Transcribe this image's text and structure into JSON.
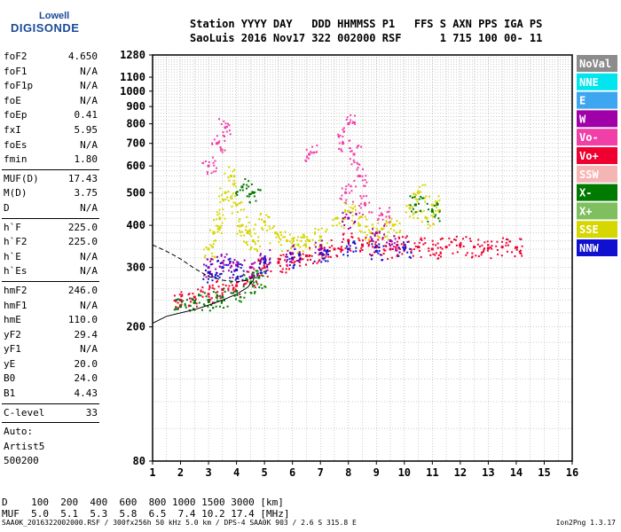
{
  "logo": {
    "line1": "Lowell",
    "line2": "DIGISONDE"
  },
  "header": {
    "line1": "Station YYYY DAY   DDD HHMMSS P1   FFS S AXN PPS IGA PS",
    "line2": "SaoLuis 2016 Nov17 322 002000 RSF      1 715 100 00- 11"
  },
  "params_group1": [
    {
      "name": "foF2",
      "value": "4.650"
    },
    {
      "name": "foF1",
      "value": "N/A"
    },
    {
      "name": "foF1p",
      "value": "N/A"
    },
    {
      "name": "foE",
      "value": "N/A"
    },
    {
      "name": "foEp",
      "value": "0.41"
    },
    {
      "name": "fxI",
      "value": "5.95"
    },
    {
      "name": "foEs",
      "value": "N/A"
    },
    {
      "name": "fmin",
      "value": "1.80"
    }
  ],
  "params_group2": [
    {
      "name": "MUF(D)",
      "value": "17.43"
    },
    {
      "name": "M(D)",
      "value": "3.75"
    },
    {
      "name": "D",
      "value": "N/A"
    }
  ],
  "params_group3": [
    {
      "name": "h`F",
      "value": "225.0"
    },
    {
      "name": "h`F2",
      "value": "225.0"
    },
    {
      "name": "h`E",
      "value": "N/A"
    },
    {
      "name": "h`Es",
      "value": "N/A"
    }
  ],
  "params_group4": [
    {
      "name": "hmF2",
      "value": "246.0"
    },
    {
      "name": "hmF1",
      "value": "N/A"
    },
    {
      "name": "hmE",
      "value": "110.0"
    },
    {
      "name": "yF2",
      "value": "29.4"
    },
    {
      "name": "yF1",
      "value": "N/A"
    },
    {
      "name": "yE",
      "value": "20.0"
    },
    {
      "name": "B0",
      "value": "24.0"
    },
    {
      "name": "B1",
      "value": "4.43"
    }
  ],
  "clevel": {
    "name": "C-level",
    "value": "33"
  },
  "auto": {
    "line1": "Auto:",
    "line2": "Artist5",
    "line3": "500200"
  },
  "bottom": {
    "d_line": "D    100  200  400  600  800 1000 1500 3000 [km]",
    "muf_line": "MUF  5.0  5.1  5.3  5.8  6.5  7.4 10.2 17.4 [MHz]"
  },
  "footer": {
    "left": "SAA0K_2016322002000.RSF / 300fx256h 50 kHz 5.0 km / DPS-4 SAA0K 903 / 2.6 S 315.8 E",
    "right": "Ion2Png 1.3.17"
  },
  "legend": [
    {
      "label": "NoVal",
      "color": "#8c8c8c"
    },
    {
      "label": "NNE",
      "color": "#00e5ee"
    },
    {
      "label": "E",
      "color": "#3ea6f0"
    },
    {
      "label": "W",
      "color": "#a000a8"
    },
    {
      "label": "Vo-",
      "color": "#f040a8"
    },
    {
      "label": "Vo+",
      "color": "#f00030"
    },
    {
      "label": "SSW",
      "color": "#f5b5b5"
    },
    {
      "label": "X-",
      "color": "#007a00"
    },
    {
      "label": "X+",
      "color": "#7fbf5f"
    },
    {
      "label": "SSE",
      "color": "#d6d600"
    },
    {
      "label": "NNW",
      "color": "#1010d0"
    }
  ],
  "chart_data": {
    "type": "scatter",
    "xlim": [
      1,
      16
    ],
    "ylim": [
      80,
      1280
    ],
    "y_scale": "log",
    "x_ticks": [
      "1",
      "2",
      "3",
      "4",
      "5",
      "6",
      "7",
      "8",
      "9",
      "10",
      "11",
      "12",
      "13",
      "14",
      "15",
      "16"
    ],
    "y_ticks": [
      "80",
      "200",
      "300",
      "400",
      "500",
      "600",
      "700",
      "800",
      "900",
      "1000",
      "1100",
      "1280"
    ],
    "grid": true,
    "curve": [
      [
        1.0,
        205
      ],
      [
        1.5,
        215
      ],
      [
        2.0,
        220
      ],
      [
        2.5,
        225
      ],
      [
        3.0,
        232
      ],
      [
        3.5,
        240
      ],
      [
        4.0,
        250
      ],
      [
        4.4,
        262
      ],
      [
        4.6,
        275
      ],
      [
        4.65,
        285
      ]
    ],
    "curve_dashed": [
      [
        1.0,
        350
      ],
      [
        1.5,
        335
      ],
      [
        2.0,
        318
      ],
      [
        2.5,
        298
      ],
      [
        3.0,
        282
      ],
      [
        3.5,
        275
      ],
      [
        4.0,
        272
      ],
      [
        4.4,
        275
      ],
      [
        4.6,
        280
      ]
    ],
    "series": [
      {
        "name": "SSE",
        "color_key": 9,
        "points": [
          [
            3.0,
            340
          ],
          [
            3.2,
            380
          ],
          [
            3.4,
            420
          ],
          [
            3.6,
            500
          ],
          [
            3.8,
            560
          ],
          [
            4.0,
            460
          ],
          [
            4.2,
            400
          ],
          [
            4.4,
            380
          ],
          [
            4.6,
            360
          ],
          [
            5.0,
            410
          ],
          [
            5.4,
            380
          ],
          [
            5.8,
            360
          ],
          [
            6.2,
            350
          ],
          [
            6.6,
            360
          ],
          [
            7.0,
            370
          ],
          [
            7.6,
            420
          ],
          [
            8.0,
            440
          ],
          [
            8.4,
            400
          ],
          [
            8.8,
            380
          ],
          [
            9.2,
            390
          ],
          [
            9.6,
            400
          ],
          [
            10.2,
            450
          ],
          [
            10.5,
            500
          ],
          [
            10.8,
            420
          ],
          [
            11.0,
            460
          ]
        ]
      },
      {
        "name": "Vo+",
        "color_key": 5,
        "points": [
          [
            2.0,
            240
          ],
          [
            2.5,
            245
          ],
          [
            3.0,
            250
          ],
          [
            3.5,
            258
          ],
          [
            4.0,
            265
          ],
          [
            4.5,
            280
          ],
          [
            5.0,
            300
          ],
          [
            5.5,
            310
          ],
          [
            6.0,
            318
          ],
          [
            6.5,
            325
          ],
          [
            7.0,
            330
          ],
          [
            7.5,
            340
          ],
          [
            8.0,
            360
          ],
          [
            8.5,
            350
          ],
          [
            9.0,
            345
          ],
          [
            9.5,
            340
          ],
          [
            10.0,
            350
          ],
          [
            10.5,
            345
          ],
          [
            11.0,
            340
          ],
          [
            11.5,
            345
          ],
          [
            12.0,
            350
          ],
          [
            12.5,
            345
          ],
          [
            13.0,
            342
          ],
          [
            13.5,
            345
          ],
          [
            14.0,
            344
          ]
        ]
      },
      {
        "name": "Vo-",
        "color_key": 4,
        "points": [
          [
            3.0,
            600
          ],
          [
            3.3,
            700
          ],
          [
            3.6,
            780
          ],
          [
            6.6,
            650
          ],
          [
            7.8,
            700
          ],
          [
            8.0,
            800
          ],
          [
            8.2,
            650
          ],
          [
            8.4,
            560
          ],
          [
            7.9,
            500
          ],
          [
            8.6,
            460
          ],
          [
            9.2,
            430
          ]
        ]
      },
      {
        "name": "W",
        "color_key": 3,
        "points": [
          [
            3.0,
            300
          ],
          [
            3.5,
            310
          ],
          [
            4.0,
            305
          ],
          [
            4.5,
            300
          ],
          [
            5.0,
            320
          ],
          [
            6.0,
            330
          ],
          [
            7.0,
            340
          ],
          [
            8.0,
            420
          ],
          [
            9.0,
            380
          ],
          [
            9.5,
            360
          ]
        ]
      },
      {
        "name": "X-",
        "color_key": 7,
        "points": [
          [
            2.0,
            230
          ],
          [
            2.5,
            236
          ],
          [
            3.0,
            240
          ],
          [
            3.5,
            245
          ],
          [
            4.0,
            255
          ],
          [
            4.5,
            270
          ],
          [
            4.8,
            280
          ],
          [
            4.2,
            520
          ],
          [
            4.6,
            500
          ],
          [
            10.4,
            460
          ],
          [
            11.0,
            440
          ]
        ]
      },
      {
        "name": "NNW",
        "color_key": 10,
        "points": [
          [
            3.0,
            290
          ],
          [
            3.5,
            300
          ],
          [
            4.0,
            295
          ],
          [
            5.0,
            310
          ],
          [
            6.0,
            320
          ],
          [
            7.0,
            330
          ],
          [
            8.0,
            340
          ],
          [
            9.0,
            335
          ],
          [
            10.0,
            340
          ]
        ]
      }
    ]
  }
}
